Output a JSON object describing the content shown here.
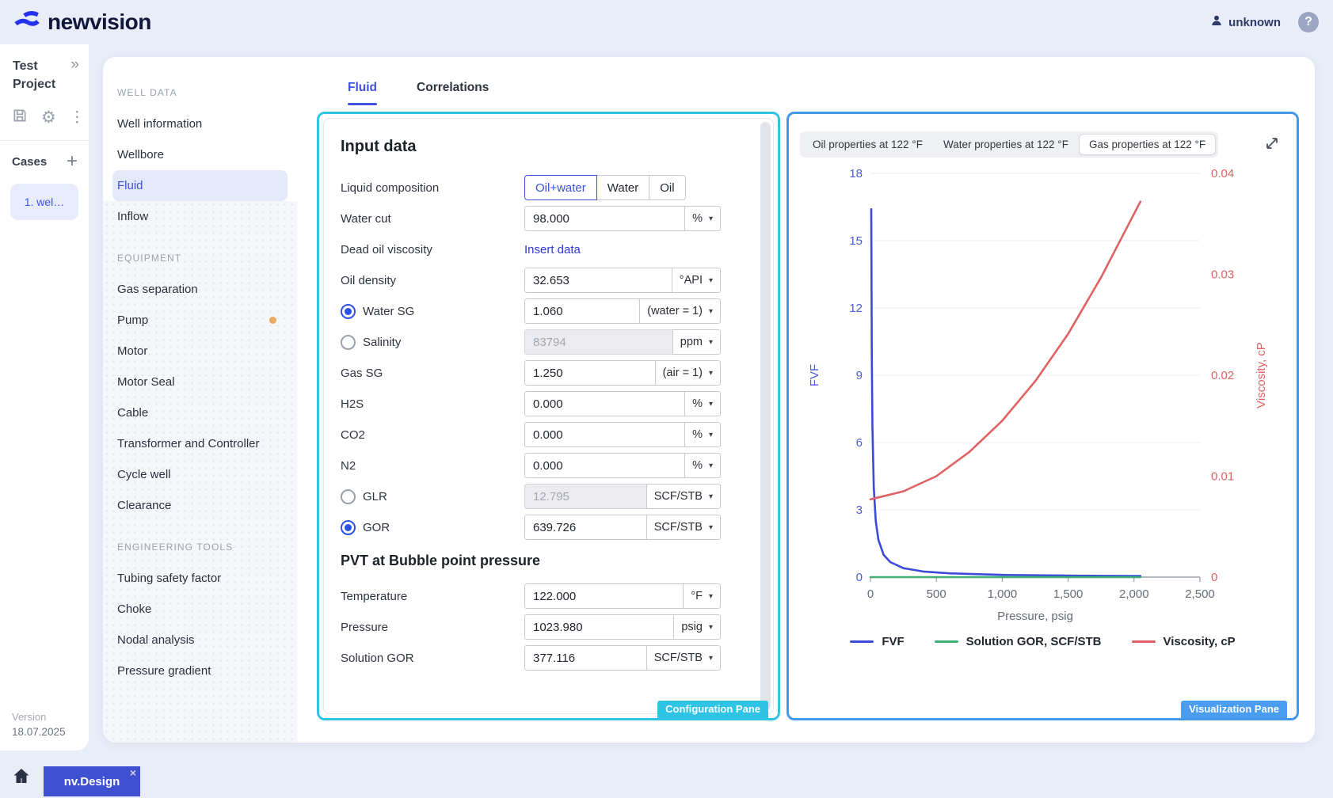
{
  "header": {
    "logo_text": "newvision",
    "user_label": "unknown",
    "help_label": "?"
  },
  "sidebar": {
    "project_name": "Test Project",
    "cases_label": "Cases",
    "case_items": [
      {
        "label": "1. wel…"
      }
    ],
    "version_label": "Version",
    "version_date": "18.07.2025"
  },
  "nav": {
    "sections": [
      {
        "title": "WELL DATA",
        "items": [
          {
            "label": "Well information"
          },
          {
            "label": "Wellbore"
          },
          {
            "label": "Fluid",
            "active": true
          },
          {
            "label": "Inflow",
            "disabled": true
          }
        ]
      },
      {
        "title": "EQUIPMENT",
        "disabled": true,
        "items": [
          {
            "label": "Gas separation"
          },
          {
            "label": "Pump",
            "dot": true
          },
          {
            "label": "Motor"
          },
          {
            "label": "Motor Seal"
          },
          {
            "label": "Cable"
          },
          {
            "label": "Transformer and Controller"
          },
          {
            "label": "Cycle well"
          },
          {
            "label": "Clearance"
          }
        ]
      },
      {
        "title": "ENGINEERING TOOLS",
        "disabled": true,
        "items": [
          {
            "label": "Tubing safety factor"
          },
          {
            "label": "Choke"
          },
          {
            "label": "Nodal analysis"
          },
          {
            "label": "Pressure gradient"
          }
        ]
      }
    ]
  },
  "tabs": [
    {
      "label": "Fluid",
      "active": true
    },
    {
      "label": "Correlations"
    }
  ],
  "config_pane": {
    "badge": "Configuration Pane",
    "title": "Input data",
    "liquid_composition": {
      "label": "Liquid composition",
      "options": [
        "Oil+water",
        "Water",
        "Oil"
      ],
      "selected": "Oil+water"
    },
    "rows": [
      {
        "label": "Water cut",
        "value": "98.000",
        "unit": "%"
      },
      {
        "label": "Dead oil viscosity",
        "link": "Insert data"
      },
      {
        "label": "Oil density",
        "value": "32.653",
        "unit": "°API"
      },
      {
        "label": "Water SG",
        "radio": "selected",
        "value": "1.060",
        "unit": "(water = 1)"
      },
      {
        "label": "Salinity",
        "radio": "unselected",
        "value": "83794",
        "unit": "ppm",
        "disabled": true
      },
      {
        "label": "Gas SG",
        "value": "1.250",
        "unit": "(air = 1)"
      },
      {
        "label": "H2S",
        "value": "0.000",
        "unit": "%"
      },
      {
        "label": "CO2",
        "value": "0.000",
        "unit": "%"
      },
      {
        "label": "N2",
        "value": "0.000",
        "unit": "%"
      },
      {
        "label": "GLR",
        "radio": "unselected",
        "value": "12.795",
        "unit": "SCF/STB",
        "disabled": true
      },
      {
        "label": "GOR",
        "radio": "selected",
        "value": "639.726",
        "unit": "SCF/STB"
      }
    ],
    "pvt_title": "PVT at Bubble point pressure",
    "pvt_rows": [
      {
        "label": "Temperature",
        "value": "122.000",
        "unit": "°F"
      },
      {
        "label": "Pressure",
        "value": "1023.980",
        "unit": "psig"
      },
      {
        "label": "Solution GOR",
        "value": "377.116",
        "unit": "SCF/STB"
      }
    ]
  },
  "viz_pane": {
    "badge": "Visualization Pane",
    "tabs": [
      {
        "label": "Oil properties at 122 °F"
      },
      {
        "label": "Water properties at 122 °F"
      },
      {
        "label": "Gas properties at 122 °F",
        "selected": true
      }
    ]
  },
  "chart_data": {
    "type": "line",
    "title": "Gas properties at 122 °F",
    "xlabel": "Pressure, psig",
    "ylabel_left": "FVF",
    "ylabel_right": "Viscosity, cP",
    "xlim": [
      0,
      2500
    ],
    "x_ticks": [
      0,
      500,
      1000,
      1500,
      2000,
      2500
    ],
    "x_tick_labels": [
      "0",
      "500",
      "1,000",
      "1,500",
      "2,000",
      "2,500"
    ],
    "ylim_left": [
      0,
      18
    ],
    "y_ticks_left": [
      0,
      3,
      6,
      9,
      12,
      15,
      18
    ],
    "ylim_right": [
      0,
      0.04
    ],
    "y_ticks_right": [
      0,
      0.01,
      0.02,
      0.03,
      0.04
    ],
    "grid": "horizontal",
    "legend_position": "bottom",
    "series": [
      {
        "name": "FVF",
        "color": "#3a4bd8",
        "axis": "left",
        "points": [
          [
            6,
            16.4
          ],
          [
            10,
            10
          ],
          [
            15,
            6.7
          ],
          [
            25,
            4.0
          ],
          [
            40,
            2.5
          ],
          [
            60,
            1.67
          ],
          [
            100,
            1.0
          ],
          [
            150,
            0.67
          ],
          [
            250,
            0.4
          ],
          [
            400,
            0.25
          ],
          [
            600,
            0.17
          ],
          [
            1000,
            0.1
          ],
          [
            1500,
            0.067
          ],
          [
            2048,
            0.049
          ]
        ]
      },
      {
        "name": "Solution GOR, SCF/STB",
        "color": "#3fae72",
        "axis": "left",
        "points": [
          [
            0,
            0
          ],
          [
            2048,
            0
          ]
        ]
      },
      {
        "name": "Viscosity, cP",
        "color": "#e06161",
        "axis": "right",
        "points": [
          [
            0,
            0.0077
          ],
          [
            250,
            0.0085
          ],
          [
            500,
            0.01
          ],
          [
            750,
            0.0124
          ],
          [
            1000,
            0.0155
          ],
          [
            1250,
            0.0194
          ],
          [
            1500,
            0.0241
          ],
          [
            1750,
            0.0297
          ],
          [
            2048,
            0.0372
          ]
        ]
      }
    ]
  },
  "taskbar": {
    "tab_label": "nv.Design",
    "close_label": "×"
  }
}
